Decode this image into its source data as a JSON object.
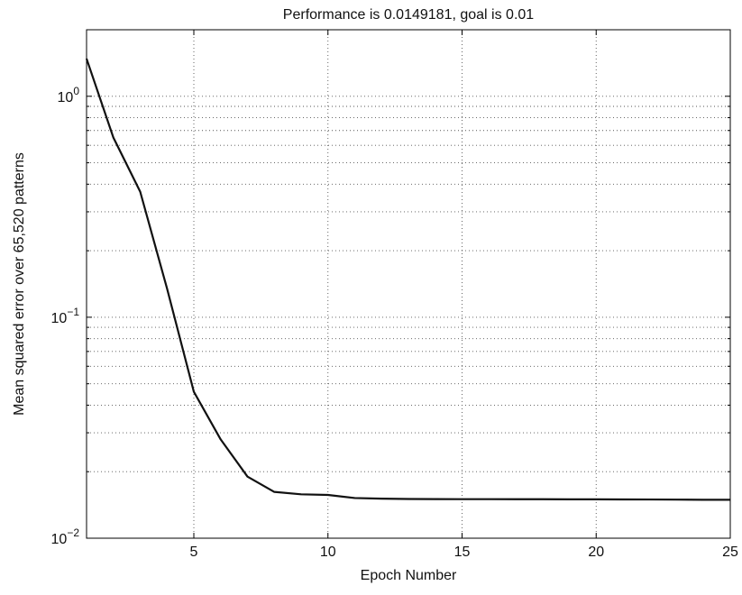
{
  "chart_data": {
    "type": "line",
    "title": "Performance is 0.0149181, goal is 0.01",
    "xlabel": "Epoch Number",
    "ylabel": "Mean squared error over 65,520 patterns",
    "xlim": [
      1,
      25
    ],
    "ylim": [
      0.01,
      2
    ],
    "yscale": "log",
    "grid": true,
    "x_ticks": [
      5,
      10,
      15,
      20,
      25
    ],
    "x_tick_labels": [
      "5",
      "10",
      "15",
      "20",
      "25"
    ],
    "y_ticks": [
      {
        "value": 0.01,
        "base": "10",
        "exp": "−2"
      },
      {
        "value": 0.1,
        "base": "10",
        "exp": "−1"
      },
      {
        "value": 1,
        "base": "10",
        "exp": "0"
      }
    ],
    "series": [
      {
        "x": [
          1,
          2,
          3,
          4,
          5,
          6,
          7,
          8,
          9,
          10,
          11,
          12,
          13,
          14,
          15,
          16,
          17,
          18,
          19,
          20,
          21,
          22,
          23,
          24,
          25
        ],
        "values": [
          1.48,
          0.65,
          0.37,
          0.135,
          0.046,
          0.028,
          0.019,
          0.0162,
          0.0158,
          0.0157,
          0.0152,
          0.0151,
          0.01505,
          0.01503,
          0.01502,
          0.01502,
          0.01501,
          0.01501,
          0.015,
          0.015,
          0.01498,
          0.01497,
          0.01495,
          0.01493,
          0.01492
        ]
      }
    ]
  }
}
